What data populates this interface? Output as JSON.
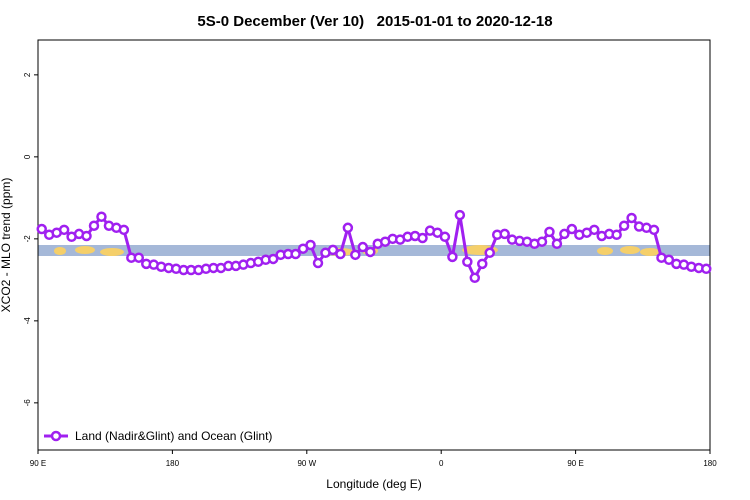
{
  "chart_data": {
    "type": "line",
    "title": "5S-0 December (Ver 10)   2015-01-01 to 2020-12-18",
    "xlabel": "Longitude (deg E)",
    "ylabel": "XCO2 - MLO trend (ppm)",
    "xlim": [
      90,
      540
    ],
    "ylim": [
      -7.15,
      2.85
    ],
    "xticks": [
      {
        "value": 90,
        "label": "90 E"
      },
      180,
      {
        "value": 270,
        "label": "90 W"
      },
      {
        "value": 360,
        "label": "0"
      },
      {
        "value": 450,
        "label": "90 E"
      },
      {
        "value": 540,
        "label": "180"
      }
    ],
    "yticks": [
      -6,
      -4,
      -2,
      0,
      2
    ],
    "legend": "bottom-left",
    "x": [
      92.5,
      97.5,
      102.5,
      107.5,
      112.5,
      117.5,
      122.5,
      127.5,
      132.5,
      137.5,
      142.5,
      147.5,
      152.5,
      157.5,
      162.5,
      167.5,
      172.5,
      177.5,
      182.5,
      187.5,
      192.5,
      197.5,
      202.5,
      207.5,
      212.5,
      217.5,
      222.5,
      227.5,
      232.5,
      237.5,
      242.5,
      247.5,
      252.5,
      257.5,
      262.5,
      267.5,
      272.5,
      277.5,
      282.5,
      287.5,
      292.5,
      297.5,
      302.5,
      307.5,
      312.5,
      317.5,
      322.5,
      327.5,
      332.5,
      337.5,
      342.5,
      347.5,
      352.5,
      357.5,
      362.5,
      367.5,
      372.5,
      377.5,
      382.5,
      387.5,
      392.5,
      397.5,
      402.5,
      407.5,
      412.5,
      417.5,
      422.5,
      427.5,
      432.5,
      437.5,
      442.5,
      447.5,
      452.5,
      457.5,
      462.5,
      467.5,
      472.5,
      477.5,
      482.5,
      487.5,
      492.5,
      497.5,
      502.5,
      507.5,
      512.5,
      517.5,
      522.5,
      527.5,
      532.5,
      537.5
    ],
    "series": [
      {
        "name": "Land (Nadir&Glint) and Ocean (Glint)",
        "color": "#a020f0",
        "values": [
          -1.76,
          -1.9,
          -1.85,
          -1.78,
          -1.95,
          -1.88,
          -1.93,
          -1.68,
          -1.46,
          -1.68,
          -1.73,
          -1.78,
          -2.46,
          -2.46,
          -2.61,
          -2.63,
          -2.68,
          -2.71,
          -2.73,
          -2.76,
          -2.76,
          -2.76,
          -2.73,
          -2.71,
          -2.71,
          -2.66,
          -2.66,
          -2.63,
          -2.59,
          -2.56,
          -2.51,
          -2.49,
          -2.39,
          -2.37,
          -2.37,
          -2.24,
          -2.15,
          -2.59,
          -2.34,
          -2.27,
          -2.37,
          -1.73,
          -2.39,
          -2.2,
          -2.32,
          -2.12,
          -2.07,
          -2.0,
          -2.02,
          -1.95,
          -1.93,
          -1.98,
          -1.8,
          -1.85,
          -1.95,
          -2.44,
          -1.42,
          -2.56,
          -2.95,
          -2.61,
          -2.34,
          -1.9,
          -1.88,
          -2.02,
          -2.05,
          -2.07,
          -2.12,
          -2.07,
          -1.83,
          -2.12,
          -1.88,
          -1.76,
          -1.9,
          -1.85,
          -1.78,
          -1.93,
          -1.88,
          -1.9,
          -1.68,
          -1.49,
          -1.7,
          -1.73,
          -1.78,
          -2.46,
          -2.51,
          -2.61,
          -2.63,
          -2.68,
          -2.71,
          -2.73
        ]
      }
    ]
  }
}
